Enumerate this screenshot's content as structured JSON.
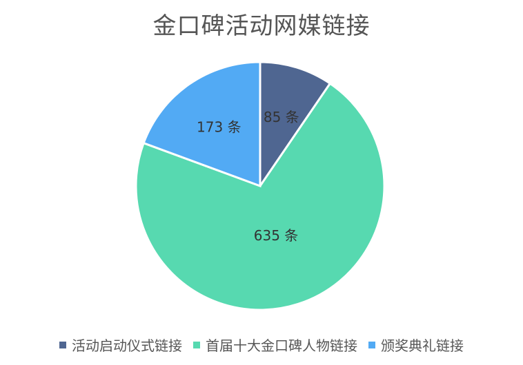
{
  "chart_data": {
    "type": "pie",
    "title": "金口碑活动网媒链接",
    "categories": [
      "活动启动仪式链接",
      "首届十大金口碑人物链接",
      "颁奖典礼链接"
    ],
    "values": [
      85,
      635,
      173
    ],
    "data_labels": [
      "85 条",
      "635 条",
      "173 条"
    ],
    "colors": [
      "#4f6691",
      "#57d9b0",
      "#52aaf4"
    ],
    "legend_position": "bottom"
  }
}
